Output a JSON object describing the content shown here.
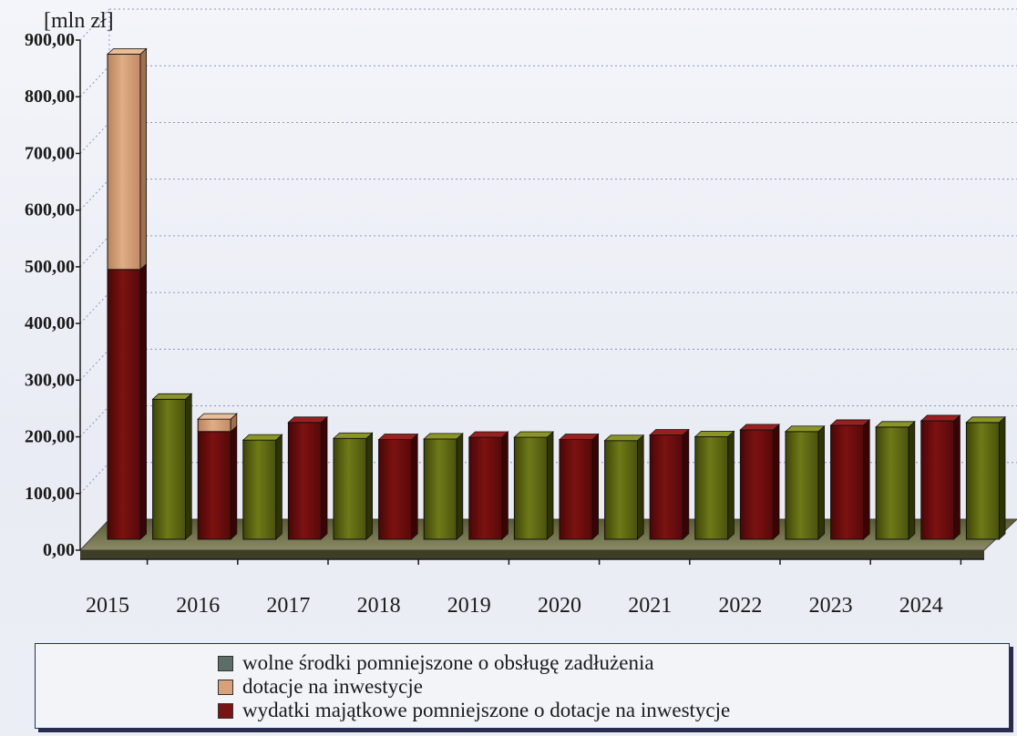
{
  "chart_data": {
    "type": "bar",
    "stacked": true,
    "three_d": true,
    "unit_label": "[mln zł]",
    "x_tick_labels": [
      "2015",
      "2016",
      "2017",
      "2018",
      "2019",
      "2020",
      "2021",
      "2022",
      "2023",
      "2024"
    ],
    "y_ticks": [
      "0,00",
      "100,00",
      "200,00",
      "300,00",
      "400,00",
      "500,00",
      "600,00",
      "700,00",
      "800,00",
      "900,00"
    ],
    "ylim": [
      0,
      900
    ],
    "grid": true,
    "legend_position": "bottom",
    "bars": [
      {
        "year": "2015",
        "series": "investment",
        "stack": [
          {
            "series": "investment",
            "value": 476
          },
          {
            "series": "subsidies",
            "value": 380
          }
        ]
      },
      {
        "year": "2015",
        "series": "free_funds",
        "stack": [
          {
            "series": "free_funds",
            "value": 247
          }
        ]
      },
      {
        "year": "2016",
        "series": "investment",
        "stack": [
          {
            "series": "investment",
            "value": 190
          },
          {
            "series": "subsidies",
            "value": 22
          }
        ]
      },
      {
        "year": "2016",
        "series": "free_funds",
        "stack": [
          {
            "series": "free_funds",
            "value": 175
          }
        ]
      },
      {
        "year": "2017",
        "series": "investment",
        "stack": [
          {
            "series": "investment",
            "value": 206
          }
        ]
      },
      {
        "year": "2017",
        "series": "free_funds",
        "stack": [
          {
            "series": "free_funds",
            "value": 178
          }
        ]
      },
      {
        "year": "2018",
        "series": "investment",
        "stack": [
          {
            "series": "investment",
            "value": 176
          }
        ]
      },
      {
        "year": "2018",
        "series": "free_funds",
        "stack": [
          {
            "series": "free_funds",
            "value": 177
          }
        ]
      },
      {
        "year": "2019",
        "series": "investment",
        "stack": [
          {
            "series": "investment",
            "value": 180
          }
        ]
      },
      {
        "year": "2019",
        "series": "free_funds",
        "stack": [
          {
            "series": "free_funds",
            "value": 180
          }
        ]
      },
      {
        "year": "2020",
        "series": "investment",
        "stack": [
          {
            "series": "investment",
            "value": 176
          }
        ]
      },
      {
        "year": "2020",
        "series": "free_funds",
        "stack": [
          {
            "series": "free_funds",
            "value": 174
          }
        ]
      },
      {
        "year": "2021",
        "series": "investment",
        "stack": [
          {
            "series": "investment",
            "value": 184
          }
        ]
      },
      {
        "year": "2021",
        "series": "free_funds",
        "stack": [
          {
            "series": "free_funds",
            "value": 181
          }
        ]
      },
      {
        "year": "2022",
        "series": "investment",
        "stack": [
          {
            "series": "investment",
            "value": 193
          }
        ]
      },
      {
        "year": "2022",
        "series": "free_funds",
        "stack": [
          {
            "series": "free_funds",
            "value": 190
          }
        ]
      },
      {
        "year": "2023",
        "series": "investment",
        "stack": [
          {
            "series": "investment",
            "value": 201
          }
        ]
      },
      {
        "year": "2023",
        "series": "free_funds",
        "stack": [
          {
            "series": "free_funds",
            "value": 198
          }
        ]
      },
      {
        "year": "2024",
        "series": "investment",
        "stack": [
          {
            "series": "investment",
            "value": 209
          }
        ]
      },
      {
        "year": "2024",
        "series": "free_funds",
        "stack": [
          {
            "series": "free_funds",
            "value": 206
          }
        ]
      }
    ],
    "series": [
      {
        "key": "free_funds",
        "name": "wolne środki pomniejszone o obsługę zadłużenia",
        "color": "#5f6a12"
      },
      {
        "key": "subsidies",
        "name": "dotacje na inwestycje",
        "color": "#d7a27a"
      },
      {
        "key": "investment",
        "name": "wydatki majątkowe pomniejszone o dotacje na inwestycje",
        "color": "#6f0d0d"
      }
    ]
  },
  "legend": {
    "items": [
      {
        "label": "wolne środki pomniejszone o obsługę zadłużenia",
        "color": "#5b6f68"
      },
      {
        "label": "dotacje na inwestycje",
        "color": "#d7a27a"
      },
      {
        "label": "wydatki majątkowe pomniejszone o dotacje na inwestycje",
        "color": "#7a1414"
      }
    ]
  }
}
